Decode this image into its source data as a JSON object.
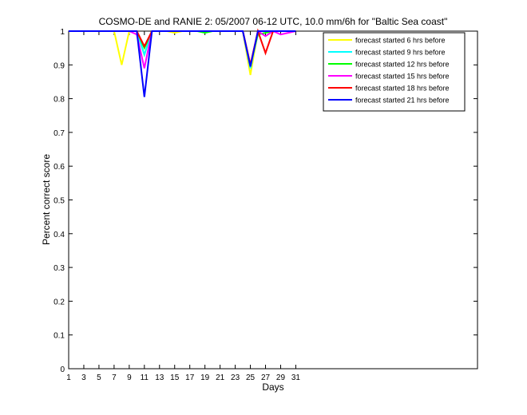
{
  "chart_data": {
    "type": "line",
    "title": "COSMO-DE and RANIE 2: 05/2007 06-12 UTC, 10.0 mm/6h for \"Baltic Sea coast\"",
    "xlabel": "Days",
    "ylabel": "Percent correct score",
    "xlim": [
      1,
      55
    ],
    "ylim": [
      0,
      1
    ],
    "xticks": [
      1,
      3,
      5,
      7,
      9,
      11,
      13,
      15,
      17,
      19,
      21,
      23,
      25,
      27,
      29,
      31
    ],
    "yticks": [
      0,
      0.1,
      0.2,
      0.3,
      0.4,
      0.5,
      0.6,
      0.7,
      0.8,
      0.9,
      1
    ],
    "ytick_labels": [
      "0",
      "0.1",
      "0.2",
      "0.3",
      "0.4",
      "0.5",
      "0.6",
      "0.7",
      "0.8",
      "0.9",
      "1"
    ],
    "grid": false,
    "legend_position": "top-right",
    "series": [
      {
        "name": "forecast started 6 hrs before",
        "color": "#ffff00",
        "x": [
          1,
          2,
          3,
          4,
          5,
          6,
          7,
          8,
          9,
          10,
          11,
          12,
          13,
          14,
          15,
          16,
          17,
          18,
          19,
          20,
          21,
          22,
          23,
          24,
          25,
          26,
          27,
          28,
          29,
          30,
          31
        ],
        "y": [
          1,
          1,
          1,
          1,
          1,
          1,
          1,
          0.9,
          1,
          1,
          0.93,
          1,
          1,
          1,
          0.995,
          1,
          1,
          1,
          1,
          1,
          1,
          1,
          1,
          1,
          0.87,
          1,
          1,
          1,
          1,
          1,
          1
        ]
      },
      {
        "name": "forecast started 9 hrs before",
        "color": "#00ffff",
        "x": [
          1,
          2,
          3,
          4,
          5,
          6,
          7,
          8,
          9,
          10,
          11,
          12,
          13,
          14,
          15,
          16,
          17,
          18,
          19,
          20,
          21,
          22,
          23,
          24,
          25,
          26,
          27,
          28,
          29,
          30,
          31
        ],
        "y": [
          1,
          1,
          1,
          1,
          1,
          1,
          1,
          1,
          1,
          1,
          0.93,
          1,
          1,
          1,
          1,
          1,
          1,
          1,
          1,
          1,
          1,
          1,
          1,
          1,
          0.89,
          1,
          1,
          1,
          1,
          1,
          1
        ]
      },
      {
        "name": "forecast started 12 hrs before",
        "color": "#00ff00",
        "x": [
          1,
          2,
          3,
          4,
          5,
          6,
          7,
          8,
          9,
          10,
          11,
          12,
          13,
          14,
          15,
          16,
          17,
          18,
          19,
          20,
          21,
          22,
          23,
          24,
          25,
          26,
          27,
          28,
          29,
          30,
          31
        ],
        "y": [
          1,
          1,
          1,
          1,
          1,
          1,
          1,
          1,
          1,
          1,
          0.95,
          1,
          1,
          1,
          1,
          1,
          1,
          1,
          0.995,
          1,
          1,
          1,
          1,
          1,
          0.9,
          0.99,
          0.995,
          1,
          1,
          1,
          1
        ]
      },
      {
        "name": "forecast started 15 hrs before",
        "color": "#ff00ff",
        "x": [
          1,
          2,
          3,
          4,
          5,
          6,
          7,
          8,
          9,
          10,
          11,
          12,
          13,
          14,
          15,
          16,
          17,
          18,
          19,
          20,
          21,
          22,
          23,
          24,
          25,
          26,
          27,
          28,
          29,
          30,
          31
        ],
        "y": [
          1,
          1,
          1,
          1,
          1,
          1,
          1,
          1,
          1,
          0.99,
          0.89,
          1,
          1,
          1,
          1,
          1,
          1,
          1,
          1,
          1,
          1,
          1,
          1,
          1,
          0.9,
          1,
          0.985,
          1,
          0.99,
          0.995,
          1
        ]
      },
      {
        "name": "forecast started 18 hrs before",
        "color": "#ff0000",
        "x": [
          1,
          2,
          3,
          4,
          5,
          6,
          7,
          8,
          9,
          10,
          11,
          12,
          13,
          14,
          15,
          16,
          17,
          18,
          19,
          20,
          21,
          22,
          23,
          24,
          25,
          26,
          27,
          28,
          29,
          30,
          31
        ],
        "y": [
          1,
          1,
          1,
          1,
          1,
          1,
          1,
          1,
          1,
          1,
          0.955,
          1,
          1,
          1,
          1,
          1,
          1,
          1,
          1,
          1,
          1,
          1,
          1,
          1,
          0.9,
          1,
          0.935,
          1,
          1,
          1,
          1
        ]
      },
      {
        "name": "forecast started 21 hrs before",
        "color": "#0000ff",
        "x": [
          1,
          2,
          3,
          4,
          5,
          6,
          7,
          8,
          9,
          10,
          11,
          12,
          13,
          14,
          15,
          16,
          17,
          18,
          19,
          20,
          21,
          22,
          23,
          24,
          25,
          26,
          27,
          28,
          29,
          30,
          31
        ],
        "y": [
          1,
          1,
          1,
          1,
          1,
          1,
          1,
          1,
          1,
          1,
          0.805,
          1,
          1,
          1,
          1,
          1,
          1,
          1,
          1,
          1,
          1,
          1,
          1,
          1,
          0.895,
          1,
          1,
          1,
          1,
          1,
          1
        ]
      }
    ]
  }
}
